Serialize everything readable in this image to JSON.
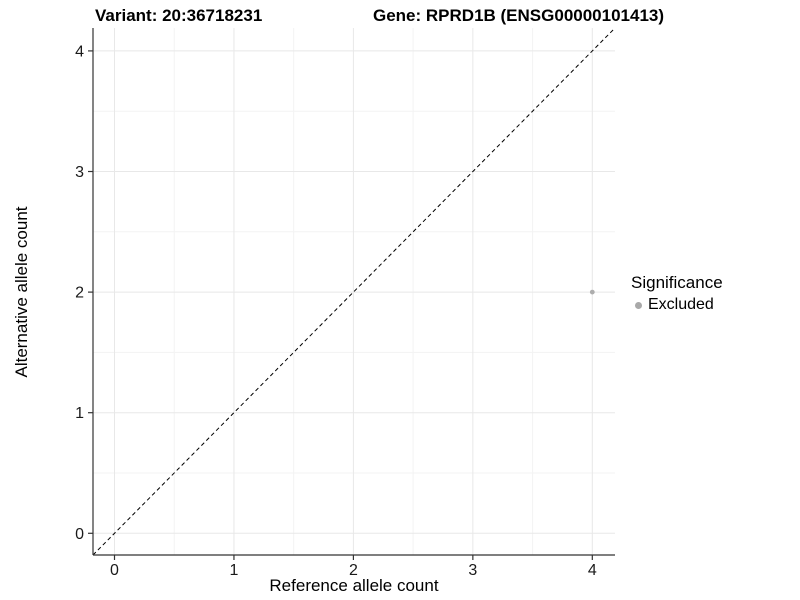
{
  "chart_data": {
    "type": "scatter",
    "titles": {
      "left": "Variant: 20:36718231",
      "right": "Gene: RPRD1B (ENSG00000101413)"
    },
    "xlabel": "Reference allele count",
    "ylabel": "Alternative allele count",
    "x_ticks": [
      0,
      1,
      2,
      3,
      4
    ],
    "y_ticks": [
      0,
      1,
      2,
      3,
      4
    ],
    "xlim": [
      -0.18,
      4.19
    ],
    "ylim": [
      -0.18,
      4.19
    ],
    "grid": {
      "major": true,
      "minor": true
    },
    "reference_line": {
      "equation": "y = x",
      "style": "dashed",
      "color": "#000000",
      "from": [
        -0.18,
        -0.18
      ],
      "to": [
        4.19,
        4.19
      ]
    },
    "series": [
      {
        "name": "Excluded",
        "marker": "circle",
        "color": "#adadad",
        "size": 2.4,
        "points": [
          [
            4,
            2
          ]
        ]
      }
    ],
    "legend": {
      "title": "Significance",
      "position": "right",
      "entries": [
        {
          "label": "Excluded",
          "color": "#a9a9a9"
        }
      ]
    }
  },
  "colors": {
    "background": "#ffffff",
    "grid_major": "#e8e8e8",
    "grid_minor": "#f3f3f3",
    "axis_line": "#333333",
    "tick_mark": "#333333",
    "tick_label": "#1a1a1a",
    "text": "#000000"
  }
}
